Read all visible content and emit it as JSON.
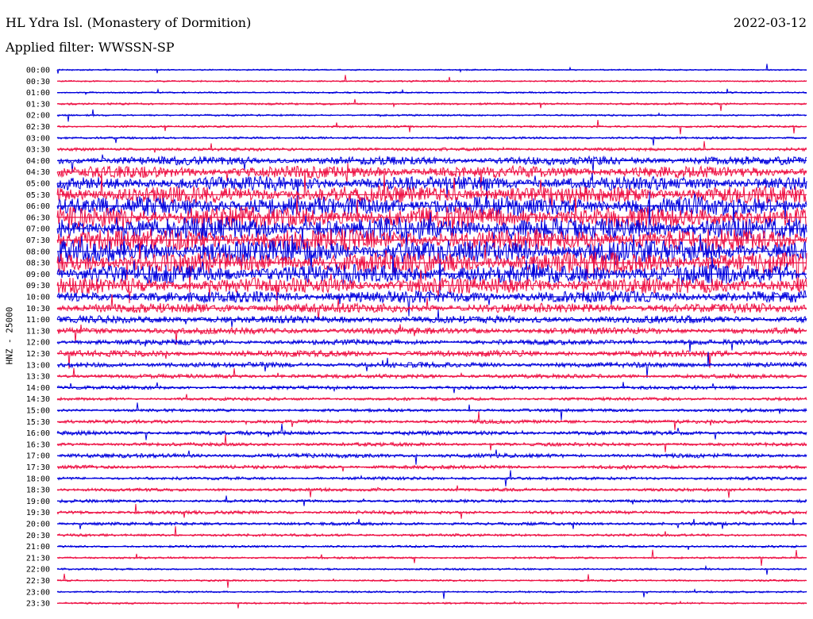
{
  "header": {
    "station": "HL Ydra Isl. (Monastery of Dormition)",
    "date": "2022-03-12",
    "filter_label": "Applied filter: WWSSN-SP"
  },
  "channel_label": "HNZ - 25000",
  "colors": {
    "even_trace": "#0000dd",
    "odd_trace": "#ee1144",
    "background": "#ffffff"
  },
  "chart_data": {
    "type": "line",
    "description_type": "helicorder",
    "row_labels": [
      "00:00",
      "00:30",
      "01:00",
      "01:30",
      "02:00",
      "02:30",
      "03:00",
      "03:30",
      "04:00",
      "04:30",
      "05:00",
      "05:30",
      "06:00",
      "06:30",
      "07:00",
      "07:30",
      "08:00",
      "08:30",
      "09:00",
      "09:30",
      "10:00",
      "10:30",
      "11:00",
      "11:30",
      "12:00",
      "12:30",
      "13:00",
      "13:30",
      "14:00",
      "14:30",
      "15:00",
      "15:30",
      "16:00",
      "16:30",
      "17:00",
      "17:30",
      "18:00",
      "18:30",
      "19:00",
      "19:30",
      "20:00",
      "20:30",
      "21:00",
      "21:30",
      "22:00",
      "22:30",
      "23:00",
      "23:30"
    ],
    "row_activity": [
      0.02,
      0.03,
      0.03,
      0.05,
      0.04,
      0.05,
      0.06,
      0.1,
      0.35,
      0.5,
      0.6,
      0.75,
      0.85,
      0.95,
      1.0,
      1.0,
      1.0,
      0.95,
      0.85,
      0.7,
      0.5,
      0.4,
      0.3,
      0.25,
      0.2,
      0.25,
      0.2,
      0.15,
      0.12,
      0.1,
      0.1,
      0.12,
      0.15,
      0.12,
      0.15,
      0.12,
      0.1,
      0.1,
      0.1,
      0.12,
      0.1,
      0.08,
      0.06,
      0.05,
      0.05,
      0.04,
      0.04,
      0.04
    ],
    "grid": false
  }
}
